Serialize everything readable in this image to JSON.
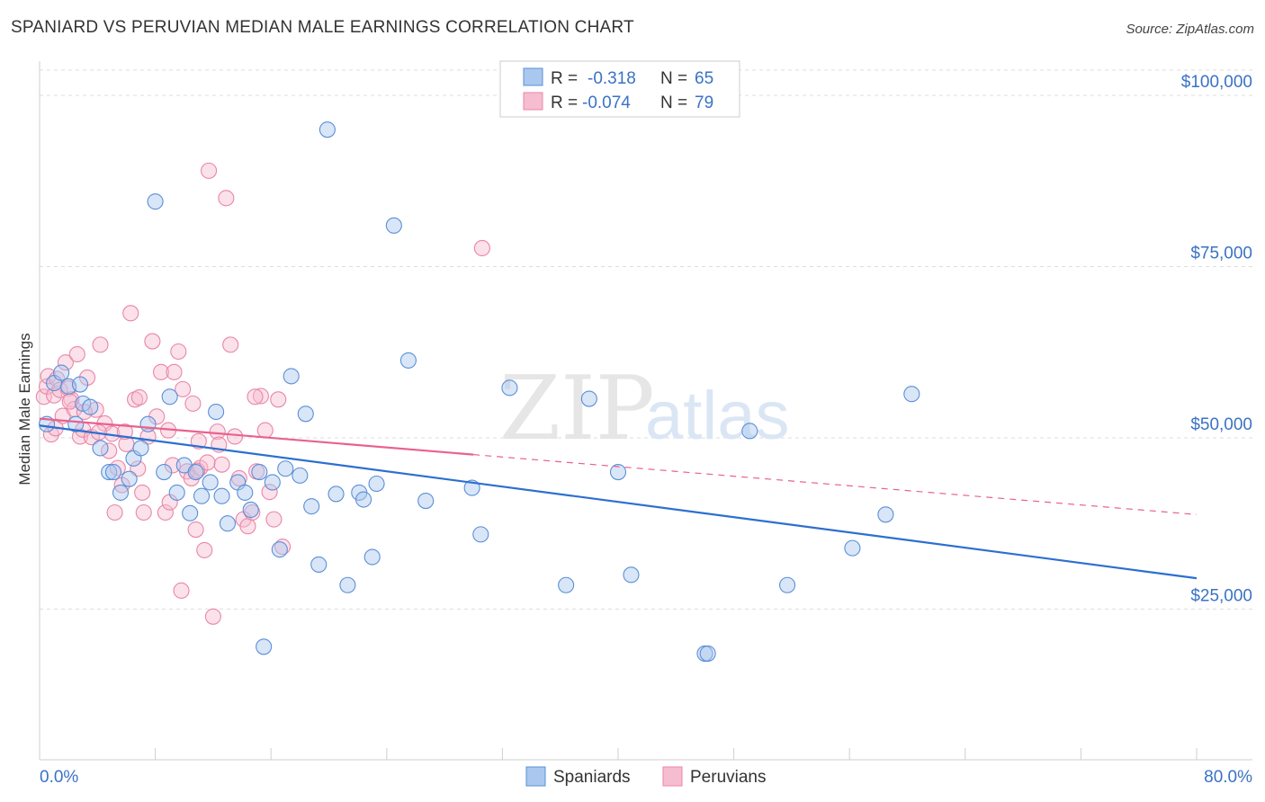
{
  "header": {
    "title": "SPANIARD VS PERUVIAN MEDIAN MALE EARNINGS CORRELATION CHART",
    "source": "Source: ZipAtlas.com"
  },
  "watermark": {
    "zip": "ZIP",
    "atlas": "atlas"
  },
  "colors": {
    "spaniards_fill": "#aac8ef",
    "spaniards_stroke": "#5a8fd6",
    "spaniards_line": "#2c6fd0",
    "peruvians_fill": "#f6bcd0",
    "peruvians_stroke": "#e986a8",
    "peruvians_line": "#e8628e",
    "axis_text": "#3a72c4",
    "grid": "#dddddd"
  },
  "legend_top": {
    "rows": [
      {
        "r_label": "R =",
        "r_value": "-0.318",
        "n_label": "N =",
        "n_value": "65"
      },
      {
        "r_label": "R =",
        "r_value": "-0.074",
        "n_label": "N =",
        "n_value": "79"
      }
    ]
  },
  "legend_bottom": {
    "spaniards": "Spaniards",
    "peruvians": "Peruvians"
  },
  "chart_data": {
    "type": "scatter",
    "title": "SPANIARD VS PERUVIAN MEDIAN MALE EARNINGS CORRELATION CHART",
    "xlabel": "",
    "ylabel": "Median Male Earnings",
    "xlim": [
      0,
      80
    ],
    "ylim": [
      3000,
      105000
    ],
    "x_tick_labels": [
      "0.0%",
      "80.0%"
    ],
    "y_ticks": [
      25000,
      50000,
      75000,
      100000
    ],
    "y_tick_labels": [
      "$25,000",
      "$50,000",
      "$75,000",
      "$100,000"
    ],
    "grid": true,
    "series": [
      {
        "name": "Spaniards",
        "R": -0.318,
        "N": 65,
        "trend": {
          "x": [
            0,
            80
          ],
          "y": [
            51800,
            29500
          ],
          "dashed_from": null
        },
        "points": [
          [
            0.5,
            52000
          ],
          [
            1.0,
            58000
          ],
          [
            1.5,
            59500
          ],
          [
            2.0,
            57500
          ],
          [
            2.5,
            52000
          ],
          [
            3.0,
            55000
          ],
          [
            3.5,
            54500
          ],
          [
            4.2,
            48500
          ],
          [
            4.8,
            45000
          ],
          [
            5.1,
            45000
          ],
          [
            5.6,
            42000
          ],
          [
            6.2,
            44000
          ],
          [
            6.5,
            47000
          ],
          [
            7.0,
            48500
          ],
          [
            7.5,
            52000
          ],
          [
            8.0,
            84500
          ],
          [
            8.6,
            45000
          ],
          [
            9.0,
            56000
          ],
          [
            9.5,
            42000
          ],
          [
            10.0,
            46000
          ],
          [
            10.4,
            39000
          ],
          [
            10.8,
            45000
          ],
          [
            11.2,
            41500
          ],
          [
            11.8,
            43500
          ],
          [
            12.2,
            53800
          ],
          [
            12.6,
            41500
          ],
          [
            13.0,
            37500
          ],
          [
            13.7,
            43500
          ],
          [
            14.2,
            42000
          ],
          [
            14.6,
            39500
          ],
          [
            15.2,
            45000
          ],
          [
            15.5,
            19500
          ],
          [
            16.1,
            43500
          ],
          [
            16.6,
            33700
          ],
          [
            17.0,
            45500
          ],
          [
            17.4,
            59000
          ],
          [
            18.0,
            44500
          ],
          [
            18.4,
            53500
          ],
          [
            18.8,
            40000
          ],
          [
            19.3,
            31500
          ],
          [
            19.9,
            95000
          ],
          [
            20.5,
            41800
          ],
          [
            21.3,
            28500
          ],
          [
            22.1,
            42000
          ],
          [
            22.4,
            41000
          ],
          [
            23.0,
            32600
          ],
          [
            23.3,
            43300
          ],
          [
            24.5,
            81000
          ],
          [
            25.5,
            61300
          ],
          [
            26.7,
            40800
          ],
          [
            29.9,
            42700
          ],
          [
            30.5,
            35900
          ],
          [
            32.5,
            57300
          ],
          [
            36.4,
            28500
          ],
          [
            38.0,
            55700
          ],
          [
            40.0,
            45000
          ],
          [
            40.9,
            30000
          ],
          [
            46.0,
            18500
          ],
          [
            46.2,
            18500
          ],
          [
            49.1,
            51000
          ],
          [
            51.7,
            28500
          ],
          [
            56.2,
            33900
          ],
          [
            58.5,
            38800
          ],
          [
            60.3,
            56400
          ],
          [
            2.8,
            57800
          ]
        ]
      },
      {
        "name": "Peruvians",
        "R": -0.074,
        "N": 79,
        "trend": {
          "x": [
            0,
            80
          ],
          "y": [
            52800,
            38800
          ],
          "dashed_from": 30
        },
        "points": [
          [
            0.3,
            56000
          ],
          [
            0.5,
            57500
          ],
          [
            0.6,
            59000
          ],
          [
            0.8,
            50500
          ],
          [
            1.0,
            56200
          ],
          [
            1.2,
            58600
          ],
          [
            1.4,
            57000
          ],
          [
            1.6,
            53200
          ],
          [
            1.8,
            61000
          ],
          [
            2.0,
            57200
          ],
          [
            2.2,
            55600
          ],
          [
            2.4,
            54200
          ],
          [
            2.6,
            62200
          ],
          [
            2.8,
            50200
          ],
          [
            3.0,
            51200
          ],
          [
            3.3,
            58800
          ],
          [
            3.6,
            50100
          ],
          [
            3.9,
            54100
          ],
          [
            4.2,
            63600
          ],
          [
            4.5,
            52100
          ],
          [
            4.8,
            48100
          ],
          [
            5.0,
            50600
          ],
          [
            5.2,
            39100
          ],
          [
            5.4,
            45600
          ],
          [
            5.7,
            43100
          ],
          [
            6.0,
            49100
          ],
          [
            6.3,
            68200
          ],
          [
            6.6,
            55600
          ],
          [
            6.9,
            55900
          ],
          [
            7.2,
            39100
          ],
          [
            7.5,
            50200
          ],
          [
            7.8,
            64100
          ],
          [
            8.1,
            53100
          ],
          [
            8.4,
            59600
          ],
          [
            8.7,
            39100
          ],
          [
            9.0,
            40600
          ],
          [
            9.3,
            59600
          ],
          [
            9.6,
            62600
          ],
          [
            9.9,
            57100
          ],
          [
            10.2,
            45100
          ],
          [
            10.5,
            44100
          ],
          [
            10.8,
            36600
          ],
          [
            11.1,
            45600
          ],
          [
            11.4,
            33600
          ],
          [
            11.7,
            89000
          ],
          [
            12.0,
            23900
          ],
          [
            12.3,
            50900
          ],
          [
            12.6,
            46100
          ],
          [
            12.9,
            85000
          ],
          [
            13.2,
            63600
          ],
          [
            13.5,
            50200
          ],
          [
            13.8,
            44100
          ],
          [
            14.1,
            38100
          ],
          [
            14.4,
            37100
          ],
          [
            14.7,
            39100
          ],
          [
            15.0,
            45100
          ],
          [
            15.3,
            56100
          ],
          [
            15.6,
            51100
          ],
          [
            15.9,
            42100
          ],
          [
            16.2,
            38100
          ],
          [
            16.5,
            55600
          ],
          [
            16.8,
            34100
          ],
          [
            9.8,
            27700
          ],
          [
            11.0,
            49500
          ],
          [
            10.6,
            55000
          ],
          [
            8.9,
            51100
          ],
          [
            7.1,
            42000
          ],
          [
            6.8,
            45500
          ],
          [
            5.9,
            50900
          ],
          [
            4.1,
            50800
          ],
          [
            3.1,
            53800
          ],
          [
            2.1,
            55300
          ],
          [
            1.1,
            51400
          ],
          [
            9.2,
            46000
          ],
          [
            10.9,
            45200
          ],
          [
            11.6,
            46400
          ],
          [
            12.4,
            49000
          ],
          [
            30.6,
            77700
          ],
          [
            14.9,
            56000
          ]
        ]
      }
    ]
  }
}
